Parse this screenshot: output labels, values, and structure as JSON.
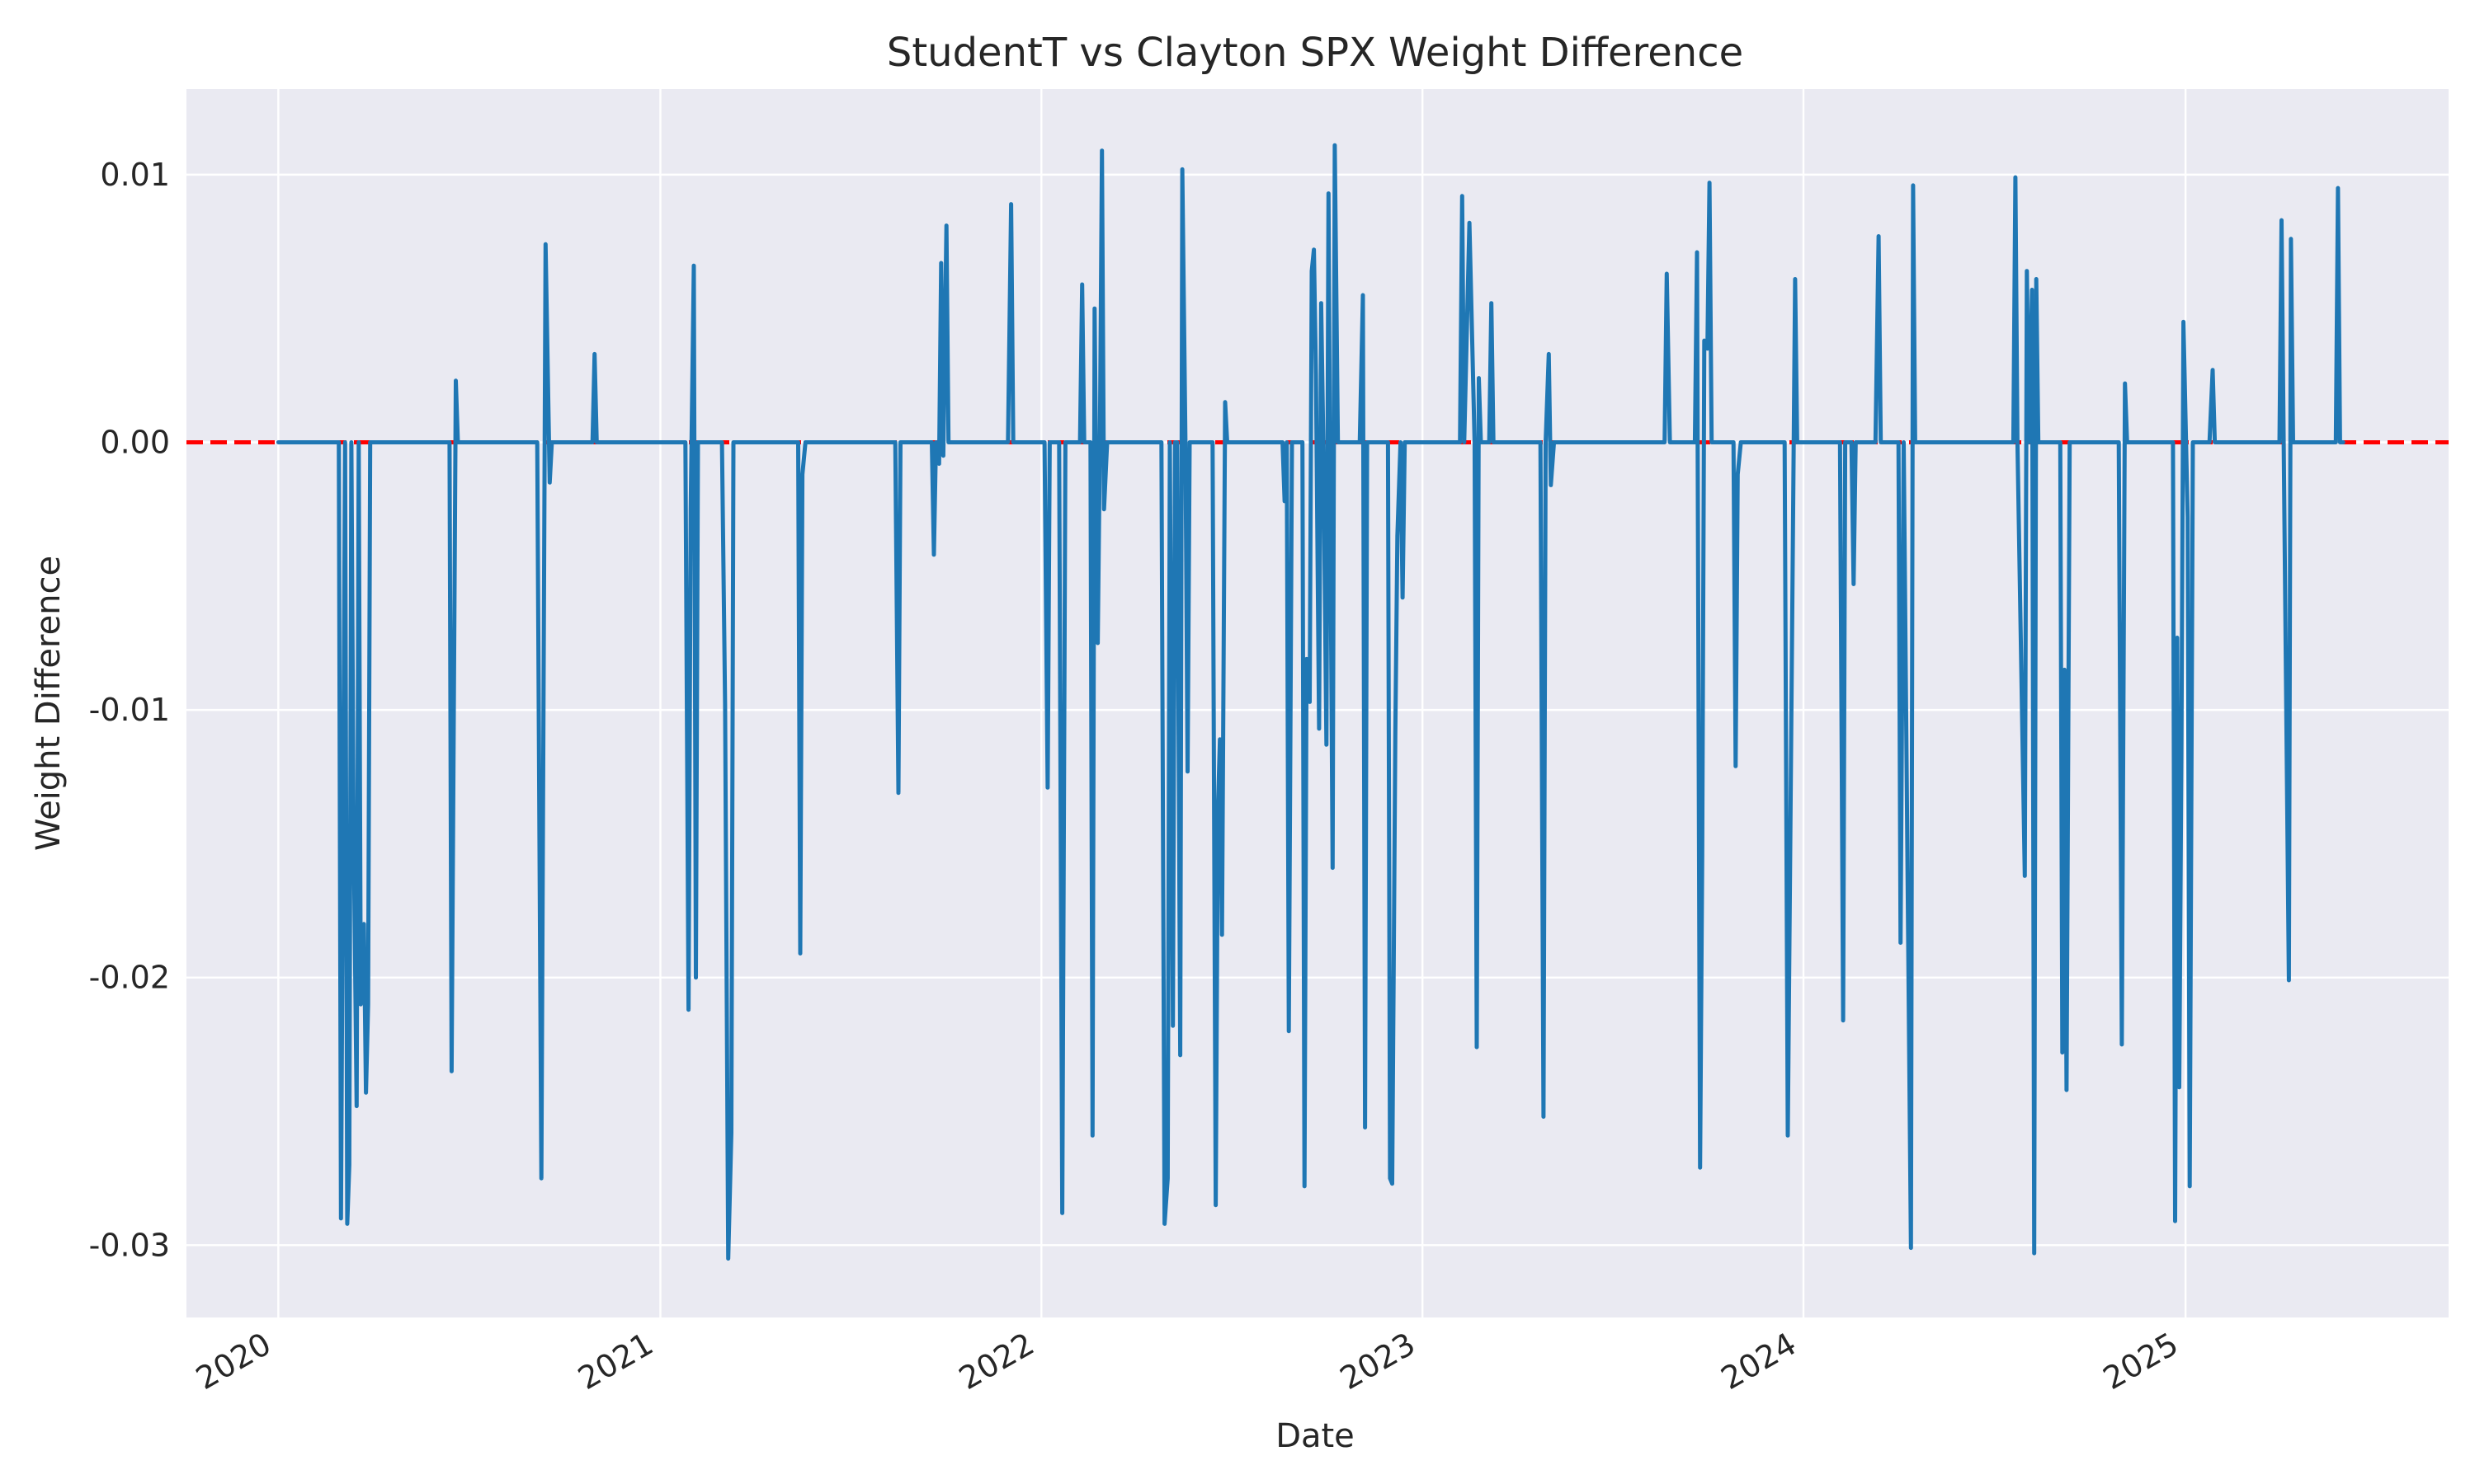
{
  "chart_data": {
    "type": "line",
    "title": "StudentT vs Clayton SPX Weight Difference",
    "xlabel": "Date",
    "ylabel": "Weight Difference",
    "x_ticks": [
      "2020",
      "2021",
      "2022",
      "2023",
      "2024",
      "2025"
    ],
    "y_ticks": [
      "0.01",
      "0.00",
      "-0.01",
      "-0.02",
      "-0.03"
    ],
    "y_tick_values": [
      0.01,
      0.0,
      -0.01,
      -0.02,
      -0.03
    ],
    "xlim": [
      "2019-10-05",
      "2025-09-10"
    ],
    "ylim": [
      -0.0327,
      0.0132
    ],
    "grid": true,
    "background_color": "#eaeaf2",
    "series_color": "#1f77b4",
    "reference_line": {
      "y": 0.0,
      "color": "#ff0000",
      "style": "dashed"
    },
    "series": [
      {
        "points": [
          [
            "2020-01-01",
            0.0
          ],
          [
            "2020-02-28",
            0.0
          ],
          [
            "2020-03-01",
            -0.029
          ],
          [
            "2020-03-05",
            0.0
          ],
          [
            "2020-03-07",
            -0.0292
          ],
          [
            "2020-03-09",
            -0.027
          ],
          [
            "2020-03-11",
            0.0
          ],
          [
            "2020-03-13",
            -0.014
          ],
          [
            "2020-03-16",
            -0.0248
          ],
          [
            "2020-03-18",
            0.0
          ],
          [
            "2020-03-20",
            -0.021
          ],
          [
            "2020-03-23",
            -0.018
          ],
          [
            "2020-03-25",
            -0.0243
          ],
          [
            "2020-03-27",
            -0.021
          ],
          [
            "2020-03-29",
            0.0
          ],
          [
            "2020-06-13",
            0.0
          ],
          [
            "2020-06-15",
            -0.0235
          ],
          [
            "2020-06-19",
            0.0023
          ],
          [
            "2020-06-21",
            0.0
          ],
          [
            "2020-09-05",
            0.0
          ],
          [
            "2020-09-09",
            -0.0275
          ],
          [
            "2020-09-13",
            0.0074
          ],
          [
            "2020-09-17",
            -0.0015
          ],
          [
            "2020-09-19",
            0.0
          ],
          [
            "2020-10-28",
            0.0
          ],
          [
            "2020-10-30",
            0.0033
          ],
          [
            "2020-11-01",
            0.0
          ],
          [
            "2021-01-25",
            0.0
          ],
          [
            "2021-01-28",
            -0.0212
          ],
          [
            "2021-01-30",
            -0.0025
          ],
          [
            "2021-02-02",
            0.0066
          ],
          [
            "2021-02-04",
            -0.02
          ],
          [
            "2021-02-06",
            0.0
          ],
          [
            "2021-03-01",
            0.0
          ],
          [
            "2021-03-04",
            -0.0098
          ],
          [
            "2021-03-07",
            -0.0305
          ],
          [
            "2021-03-10",
            -0.0258
          ],
          [
            "2021-03-12",
            0.0
          ],
          [
            "2021-05-13",
            0.0
          ],
          [
            "2021-05-15",
            -0.0191
          ],
          [
            "2021-05-17",
            -0.0012
          ],
          [
            "2021-05-20",
            0.0
          ],
          [
            "2021-08-14",
            0.0
          ],
          [
            "2021-08-17",
            -0.0131
          ],
          [
            "2021-08-19",
            0.0
          ],
          [
            "2021-09-18",
            0.0
          ],
          [
            "2021-09-20",
            -0.0042
          ],
          [
            "2021-09-22",
            0.0
          ],
          [
            "2021-09-25",
            -0.0008
          ],
          [
            "2021-09-27",
            0.0067
          ],
          [
            "2021-09-29",
            -0.0005
          ],
          [
            "2021-10-02",
            0.0081
          ],
          [
            "2021-10-04",
            0.0
          ],
          [
            "2021-11-30",
            0.0
          ],
          [
            "2021-12-03",
            0.0089
          ],
          [
            "2021-12-05",
            0.0
          ],
          [
            "2022-01-04",
            0.0
          ],
          [
            "2022-01-07",
            -0.0129
          ],
          [
            "2022-01-09",
            0.0
          ],
          [
            "2022-01-18",
            0.0
          ],
          [
            "2022-01-21",
            -0.0288
          ],
          [
            "2022-01-24",
            0.0
          ],
          [
            "2022-02-07",
            0.0
          ],
          [
            "2022-02-09",
            0.0059
          ],
          [
            "2022-02-11",
            0.0
          ],
          [
            "2022-02-17",
            0.0
          ],
          [
            "2022-02-19",
            -0.0259
          ],
          [
            "2022-02-21",
            0.005
          ],
          [
            "2022-02-24",
            -0.0075
          ],
          [
            "2022-02-26",
            0.0
          ],
          [
            "2022-02-28",
            0.0109
          ],
          [
            "2022-03-02",
            -0.0025
          ],
          [
            "2022-03-05",
            0.0
          ],
          [
            "2022-04-26",
            0.0
          ],
          [
            "2022-04-29",
            -0.0292
          ],
          [
            "2022-05-02",
            -0.0275
          ],
          [
            "2022-05-04",
            0.0
          ],
          [
            "2022-05-07",
            -0.0218
          ],
          [
            "2022-05-09",
            0.0
          ],
          [
            "2022-05-11",
            0.0
          ],
          [
            "2022-05-14",
            -0.0229
          ],
          [
            "2022-05-16",
            0.0102
          ],
          [
            "2022-05-19",
            0.0
          ],
          [
            "2022-05-21",
            -0.0123
          ],
          [
            "2022-05-23",
            0.0
          ],
          [
            "2022-06-14",
            0.0
          ],
          [
            "2022-06-17",
            -0.0285
          ],
          [
            "2022-06-19",
            -0.0138
          ],
          [
            "2022-06-21",
            -0.0111
          ],
          [
            "2022-06-23",
            -0.0184
          ],
          [
            "2022-06-26",
            0.0015
          ],
          [
            "2022-06-28",
            0.0
          ],
          [
            "2022-08-20",
            0.0
          ],
          [
            "2022-08-22",
            -0.0022
          ],
          [
            "2022-08-24",
            0.0
          ],
          [
            "2022-08-26",
            -0.022
          ],
          [
            "2022-08-29",
            0.0
          ],
          [
            "2022-09-08",
            0.0
          ],
          [
            "2022-09-10",
            -0.0278
          ],
          [
            "2022-09-12",
            -0.0081
          ],
          [
            "2022-09-15",
            -0.0097
          ],
          [
            "2022-09-17",
            0.0064
          ],
          [
            "2022-09-19",
            0.0072
          ],
          [
            "2022-09-21",
            0.0025
          ],
          [
            "2022-09-24",
            -0.0107
          ],
          [
            "2022-09-26",
            0.0052
          ],
          [
            "2022-09-28",
            0.0
          ],
          [
            "2022-10-01",
            -0.0113
          ],
          [
            "2022-10-03",
            0.0093
          ],
          [
            "2022-10-05",
            -0.0041
          ],
          [
            "2022-10-07",
            -0.0159
          ],
          [
            "2022-10-09",
            0.0111
          ],
          [
            "2022-10-12",
            0.0
          ],
          [
            "2022-11-02",
            0.0
          ],
          [
            "2022-11-05",
            0.0055
          ],
          [
            "2022-11-07",
            -0.0256
          ],
          [
            "2022-11-09",
            0.0
          ],
          [
            "2022-11-29",
            0.0
          ],
          [
            "2022-12-01",
            -0.0275
          ],
          [
            "2022-12-03",
            -0.0277
          ],
          [
            "2022-12-06",
            -0.0109
          ],
          [
            "2022-12-08",
            -0.0035
          ],
          [
            "2022-12-11",
            0.0
          ],
          [
            "2022-12-13",
            -0.0058
          ],
          [
            "2022-12-15",
            0.0
          ],
          [
            "2023-02-06",
            0.0
          ],
          [
            "2023-02-08",
            0.0092
          ],
          [
            "2023-02-10",
            0.0
          ],
          [
            "2023-02-15",
            0.0082
          ],
          [
            "2023-02-20",
            0.0
          ],
          [
            "2023-02-22",
            -0.0226
          ],
          [
            "2023-02-24",
            0.0024
          ],
          [
            "2023-02-26",
            0.0
          ],
          [
            "2023-03-06",
            0.0
          ],
          [
            "2023-03-08",
            0.0052
          ],
          [
            "2023-03-10",
            0.0
          ],
          [
            "2023-04-24",
            0.0
          ],
          [
            "2023-04-27",
            -0.0252
          ],
          [
            "2023-04-29",
            0.0
          ],
          [
            "2023-05-02",
            0.0033
          ],
          [
            "2023-05-04",
            -0.0016
          ],
          [
            "2023-05-07",
            0.0
          ],
          [
            "2023-08-21",
            0.0
          ],
          [
            "2023-08-23",
            0.0063
          ],
          [
            "2023-08-26",
            0.0
          ],
          [
            "2023-09-19",
            0.0
          ],
          [
            "2023-09-21",
            0.0071
          ],
          [
            "2023-09-24",
            -0.0271
          ],
          [
            "2023-09-26",
            -0.0154
          ],
          [
            "2023-09-28",
            0.0038
          ],
          [
            "2023-10-01",
            0.0035
          ],
          [
            "2023-10-03",
            0.0097
          ],
          [
            "2023-10-05",
            0.0
          ],
          [
            "2023-10-26",
            0.0
          ],
          [
            "2023-10-28",
            -0.0121
          ],
          [
            "2023-10-30",
            -0.0012
          ],
          [
            "2023-11-02",
            0.0
          ],
          [
            "2023-12-14",
            0.0
          ],
          [
            "2023-12-17",
            -0.0259
          ],
          [
            "2023-12-24",
            0.0061
          ],
          [
            "2023-12-26",
            0.0
          ],
          [
            "2024-02-05",
            0.0
          ],
          [
            "2024-02-08",
            -0.0216
          ],
          [
            "2024-02-10",
            0.0
          ],
          [
            "2024-02-16",
            0.0
          ],
          [
            "2024-02-18",
            -0.0053
          ],
          [
            "2024-02-20",
            0.0
          ],
          [
            "2024-03-10",
            0.0
          ],
          [
            "2024-03-13",
            0.0077
          ],
          [
            "2024-03-15",
            0.0
          ],
          [
            "2024-04-01",
            0.0
          ],
          [
            "2024-04-03",
            -0.0187
          ],
          [
            "2024-04-06",
            0.0
          ],
          [
            "2024-04-13",
            -0.0301
          ],
          [
            "2024-04-15",
            0.0096
          ],
          [
            "2024-04-17",
            0.0
          ],
          [
            "2024-07-20",
            0.0
          ],
          [
            "2024-07-22",
            0.0099
          ],
          [
            "2024-07-24",
            0.0
          ],
          [
            "2024-07-31",
            -0.0162
          ],
          [
            "2024-08-02",
            0.0064
          ],
          [
            "2024-08-04",
            0.0
          ],
          [
            "2024-08-07",
            0.0057
          ],
          [
            "2024-08-09",
            -0.0303
          ],
          [
            "2024-08-11",
            0.0061
          ],
          [
            "2024-08-13",
            0.0
          ],
          [
            "2024-09-03",
            0.0
          ],
          [
            "2024-09-05",
            -0.0228
          ],
          [
            "2024-09-07",
            -0.0085
          ],
          [
            "2024-09-09",
            -0.0242
          ],
          [
            "2024-09-12",
            0.0
          ],
          [
            "2024-10-29",
            0.0
          ],
          [
            "2024-11-01",
            -0.0225
          ],
          [
            "2024-11-04",
            0.0022
          ],
          [
            "2024-11-06",
            0.0
          ],
          [
            "2024-12-20",
            0.0
          ],
          [
            "2024-12-22",
            -0.0291
          ],
          [
            "2024-12-24",
            -0.0073
          ],
          [
            "2024-12-26",
            -0.0241
          ],
          [
            "2024-12-28",
            -0.0118
          ],
          [
            "2024-12-30",
            0.0045
          ],
          [
            "2025-01-03",
            -0.0028
          ],
          [
            "2025-01-05",
            -0.0278
          ],
          [
            "2025-01-08",
            0.0
          ],
          [
            "2025-01-24",
            0.0
          ],
          [
            "2025-01-27",
            0.0027
          ],
          [
            "2025-01-29",
            0.0
          ],
          [
            "2025-04-01",
            0.0
          ],
          [
            "2025-04-03",
            0.0083
          ],
          [
            "2025-04-05",
            0.0
          ],
          [
            "2025-04-10",
            -0.0201
          ],
          [
            "2025-04-12",
            0.0076
          ],
          [
            "2025-04-14",
            0.0
          ],
          [
            "2025-05-25",
            0.0
          ],
          [
            "2025-05-27",
            0.0095
          ],
          [
            "2025-05-29",
            0.0
          ],
          [
            "2025-06-01",
            0.0
          ]
        ]
      }
    ]
  }
}
